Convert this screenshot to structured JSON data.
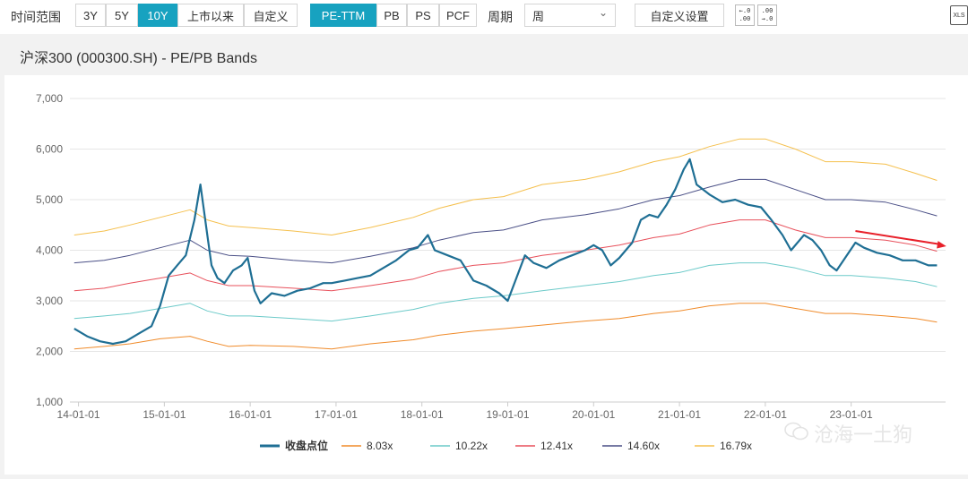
{
  "toolbar": {
    "range_label": "时间范围",
    "range_buttons": [
      "3Y",
      "5Y",
      "10Y",
      "上市以来",
      "自定义"
    ],
    "active_range": "10Y",
    "metric_buttons": [
      "PE-TTM",
      "PB",
      "PS",
      "PCF"
    ],
    "active_metric": "PE-TTM",
    "period_label": "周期",
    "period_value": "周",
    "custom_settings": "自定义设置",
    "decimals_down_icon": "decrease-decimals-icon",
    "decimals_up_icon": "increase-decimals-icon",
    "export_icon": "xls-export-icon",
    "export_label": "XLS"
  },
  "title": "沪深300 (000300.SH) - PE/PB Bands",
  "watermark": "沧海一土狗",
  "colors": {
    "accent": "#17a2c0",
    "price": "#1f6f94",
    "b1": "#f08b2a",
    "b2": "#6ccac9",
    "b3": "#e8505b",
    "b4": "#4a4f86",
    "b5": "#f5c04e",
    "arrow": "#e8202a"
  },
  "chart_data": {
    "type": "line",
    "title": "",
    "xlabel": "",
    "ylabel": "",
    "ylim": [
      1000,
      7000
    ],
    "y_ticks": [
      "1,000",
      "2,000",
      "3,000",
      "4,000",
      "5,000",
      "6,000",
      "7,000"
    ],
    "y_tick_values": [
      1000,
      2000,
      3000,
      4000,
      5000,
      6000,
      7000
    ],
    "x_ticks": [
      "14-01-01",
      "15-01-01",
      "16-01-01",
      "17-01-01",
      "18-01-01",
      "19-01-01",
      "20-01-01",
      "21-01-01",
      "22-01-01",
      "23-01-01"
    ],
    "x_tick_values": [
      2014.0,
      2015.0,
      2016.0,
      2017.0,
      2018.0,
      2019.0,
      2020.0,
      2021.0,
      2022.0,
      2023.0
    ],
    "xlim": [
      2013.9,
      2024.1
    ],
    "grid": true,
    "legend_position": "bottom",
    "series": [
      {
        "name": "收盘点位",
        "points": [
          [
            2013.95,
            2450
          ],
          [
            2014.1,
            2300
          ],
          [
            2014.25,
            2200
          ],
          [
            2014.4,
            2150
          ],
          [
            2014.55,
            2200
          ],
          [
            2014.7,
            2350
          ],
          [
            2014.85,
            2500
          ],
          [
            2014.95,
            2900
          ],
          [
            2015.05,
            3500
          ],
          [
            2015.15,
            3700
          ],
          [
            2015.25,
            3900
          ],
          [
            2015.35,
            4600
          ],
          [
            2015.42,
            5300
          ],
          [
            2015.5,
            4300
          ],
          [
            2015.55,
            3700
          ],
          [
            2015.62,
            3450
          ],
          [
            2015.7,
            3350
          ],
          [
            2015.8,
            3600
          ],
          [
            2015.9,
            3700
          ],
          [
            2015.97,
            3850
          ],
          [
            2016.05,
            3200
          ],
          [
            2016.12,
            2950
          ],
          [
            2016.25,
            3150
          ],
          [
            2016.4,
            3100
          ],
          [
            2016.55,
            3200
          ],
          [
            2016.7,
            3250
          ],
          [
            2016.85,
            3350
          ],
          [
            2016.95,
            3350
          ],
          [
            2017.1,
            3400
          ],
          [
            2017.25,
            3450
          ],
          [
            2017.4,
            3500
          ],
          [
            2017.55,
            3650
          ],
          [
            2017.7,
            3800
          ],
          [
            2017.85,
            4000
          ],
          [
            2017.95,
            4050
          ],
          [
            2018.07,
            4300
          ],
          [
            2018.15,
            4000
          ],
          [
            2018.3,
            3900
          ],
          [
            2018.45,
            3800
          ],
          [
            2018.6,
            3400
          ],
          [
            2018.75,
            3300
          ],
          [
            2018.9,
            3150
          ],
          [
            2019.0,
            3000
          ],
          [
            2019.1,
            3450
          ],
          [
            2019.2,
            3900
          ],
          [
            2019.3,
            3750
          ],
          [
            2019.45,
            3650
          ],
          [
            2019.6,
            3800
          ],
          [
            2019.75,
            3900
          ],
          [
            2019.9,
            4000
          ],
          [
            2020.0,
            4100
          ],
          [
            2020.1,
            4000
          ],
          [
            2020.2,
            3700
          ],
          [
            2020.3,
            3850
          ],
          [
            2020.45,
            4150
          ],
          [
            2020.55,
            4600
          ],
          [
            2020.65,
            4700
          ],
          [
            2020.75,
            4650
          ],
          [
            2020.85,
            4900
          ],
          [
            2020.95,
            5200
          ],
          [
            2021.05,
            5600
          ],
          [
            2021.12,
            5800
          ],
          [
            2021.2,
            5300
          ],
          [
            2021.35,
            5100
          ],
          [
            2021.5,
            4950
          ],
          [
            2021.65,
            5000
          ],
          [
            2021.8,
            4900
          ],
          [
            2021.95,
            4850
          ],
          [
            2022.07,
            4600
          ],
          [
            2022.2,
            4300
          ],
          [
            2022.3,
            4000
          ],
          [
            2022.45,
            4300
          ],
          [
            2022.55,
            4200
          ],
          [
            2022.65,
            4000
          ],
          [
            2022.75,
            3700
          ],
          [
            2022.83,
            3600
          ],
          [
            2022.95,
            3900
          ],
          [
            2023.05,
            4150
          ],
          [
            2023.15,
            4050
          ],
          [
            2023.3,
            3950
          ],
          [
            2023.45,
            3900
          ],
          [
            2023.6,
            3800
          ],
          [
            2023.75,
            3800
          ],
          [
            2023.9,
            3700
          ],
          [
            2024.0,
            3700
          ]
        ]
      },
      {
        "name": "8.03x",
        "points": [
          [
            2013.95,
            2050
          ],
          [
            2014.3,
            2100
          ],
          [
            2014.6,
            2150
          ],
          [
            2014.95,
            2250
          ],
          [
            2015.3,
            2300
          ],
          [
            2015.5,
            2200
          ],
          [
            2015.75,
            2100
          ],
          [
            2016.0,
            2120
          ],
          [
            2016.5,
            2100
          ],
          [
            2016.95,
            2050
          ],
          [
            2017.4,
            2150
          ],
          [
            2017.9,
            2230
          ],
          [
            2018.2,
            2320
          ],
          [
            2018.6,
            2400
          ],
          [
            2018.95,
            2450
          ],
          [
            2019.4,
            2520
          ],
          [
            2019.9,
            2600
          ],
          [
            2020.3,
            2650
          ],
          [
            2020.7,
            2750
          ],
          [
            2021.0,
            2800
          ],
          [
            2021.35,
            2900
          ],
          [
            2021.7,
            2950
          ],
          [
            2022.0,
            2950
          ],
          [
            2022.35,
            2850
          ],
          [
            2022.7,
            2750
          ],
          [
            2023.0,
            2750
          ],
          [
            2023.4,
            2700
          ],
          [
            2023.75,
            2650
          ],
          [
            2024.0,
            2580
          ]
        ]
      },
      {
        "name": "10.22x",
        "points": [
          [
            2013.95,
            2650
          ],
          [
            2014.3,
            2700
          ],
          [
            2014.6,
            2750
          ],
          [
            2014.95,
            2850
          ],
          [
            2015.3,
            2950
          ],
          [
            2015.5,
            2800
          ],
          [
            2015.75,
            2700
          ],
          [
            2016.0,
            2700
          ],
          [
            2016.5,
            2650
          ],
          [
            2016.95,
            2600
          ],
          [
            2017.4,
            2700
          ],
          [
            2017.9,
            2830
          ],
          [
            2018.2,
            2950
          ],
          [
            2018.6,
            3050
          ],
          [
            2018.95,
            3100
          ],
          [
            2019.4,
            3200
          ],
          [
            2019.9,
            3300
          ],
          [
            2020.3,
            3380
          ],
          [
            2020.7,
            3500
          ],
          [
            2021.0,
            3560
          ],
          [
            2021.35,
            3700
          ],
          [
            2021.7,
            3750
          ],
          [
            2022.0,
            3750
          ],
          [
            2022.35,
            3650
          ],
          [
            2022.7,
            3500
          ],
          [
            2023.0,
            3500
          ],
          [
            2023.4,
            3450
          ],
          [
            2023.75,
            3380
          ],
          [
            2024.0,
            3280
          ]
        ]
      },
      {
        "name": "12.41x",
        "points": [
          [
            2013.95,
            3200
          ],
          [
            2014.3,
            3250
          ],
          [
            2014.6,
            3350
          ],
          [
            2014.95,
            3450
          ],
          [
            2015.3,
            3550
          ],
          [
            2015.5,
            3400
          ],
          [
            2015.75,
            3300
          ],
          [
            2016.0,
            3300
          ],
          [
            2016.5,
            3250
          ],
          [
            2016.95,
            3200
          ],
          [
            2017.4,
            3300
          ],
          [
            2017.9,
            3430
          ],
          [
            2018.2,
            3580
          ],
          [
            2018.6,
            3700
          ],
          [
            2018.95,
            3750
          ],
          [
            2019.4,
            3900
          ],
          [
            2019.9,
            4000
          ],
          [
            2020.3,
            4100
          ],
          [
            2020.7,
            4250
          ],
          [
            2021.0,
            4320
          ],
          [
            2021.35,
            4500
          ],
          [
            2021.7,
            4600
          ],
          [
            2022.0,
            4600
          ],
          [
            2022.35,
            4400
          ],
          [
            2022.7,
            4250
          ],
          [
            2023.0,
            4250
          ],
          [
            2023.4,
            4200
          ],
          [
            2023.75,
            4100
          ],
          [
            2024.0,
            3980
          ]
        ]
      },
      {
        "name": "14.60x",
        "points": [
          [
            2013.95,
            3750
          ],
          [
            2014.3,
            3800
          ],
          [
            2014.6,
            3900
          ],
          [
            2014.95,
            4050
          ],
          [
            2015.3,
            4200
          ],
          [
            2015.5,
            4000
          ],
          [
            2015.75,
            3900
          ],
          [
            2016.0,
            3880
          ],
          [
            2016.5,
            3800
          ],
          [
            2016.95,
            3750
          ],
          [
            2017.4,
            3880
          ],
          [
            2017.9,
            4050
          ],
          [
            2018.2,
            4200
          ],
          [
            2018.6,
            4350
          ],
          [
            2018.95,
            4400
          ],
          [
            2019.4,
            4600
          ],
          [
            2019.9,
            4700
          ],
          [
            2020.3,
            4820
          ],
          [
            2020.7,
            5000
          ],
          [
            2021.0,
            5080
          ],
          [
            2021.35,
            5250
          ],
          [
            2021.7,
            5400
          ],
          [
            2022.0,
            5400
          ],
          [
            2022.35,
            5200
          ],
          [
            2022.7,
            5000
          ],
          [
            2023.0,
            5000
          ],
          [
            2023.4,
            4950
          ],
          [
            2023.75,
            4800
          ],
          [
            2024.0,
            4680
          ]
        ]
      },
      {
        "name": "16.79x",
        "points": [
          [
            2013.95,
            4300
          ],
          [
            2014.3,
            4380
          ],
          [
            2014.6,
            4500
          ],
          [
            2014.95,
            4650
          ],
          [
            2015.3,
            4800
          ],
          [
            2015.5,
            4600
          ],
          [
            2015.75,
            4480
          ],
          [
            2016.0,
            4450
          ],
          [
            2016.5,
            4380
          ],
          [
            2016.95,
            4300
          ],
          [
            2017.4,
            4450
          ],
          [
            2017.9,
            4650
          ],
          [
            2018.2,
            4830
          ],
          [
            2018.6,
            5000
          ],
          [
            2018.95,
            5060
          ],
          [
            2019.4,
            5300
          ],
          [
            2019.9,
            5400
          ],
          [
            2020.3,
            5550
          ],
          [
            2020.7,
            5750
          ],
          [
            2021.0,
            5850
          ],
          [
            2021.35,
            6050
          ],
          [
            2021.7,
            6200
          ],
          [
            2022.0,
            6200
          ],
          [
            2022.35,
            6000
          ],
          [
            2022.7,
            5750
          ],
          [
            2023.0,
            5750
          ],
          [
            2023.4,
            5700
          ],
          [
            2023.75,
            5520
          ],
          [
            2024.0,
            5380
          ]
        ]
      }
    ],
    "annotations": [
      {
        "type": "arrow",
        "from": [
          2023.05,
          4380
        ],
        "to": [
          2024.15,
          4080
        ]
      }
    ]
  }
}
